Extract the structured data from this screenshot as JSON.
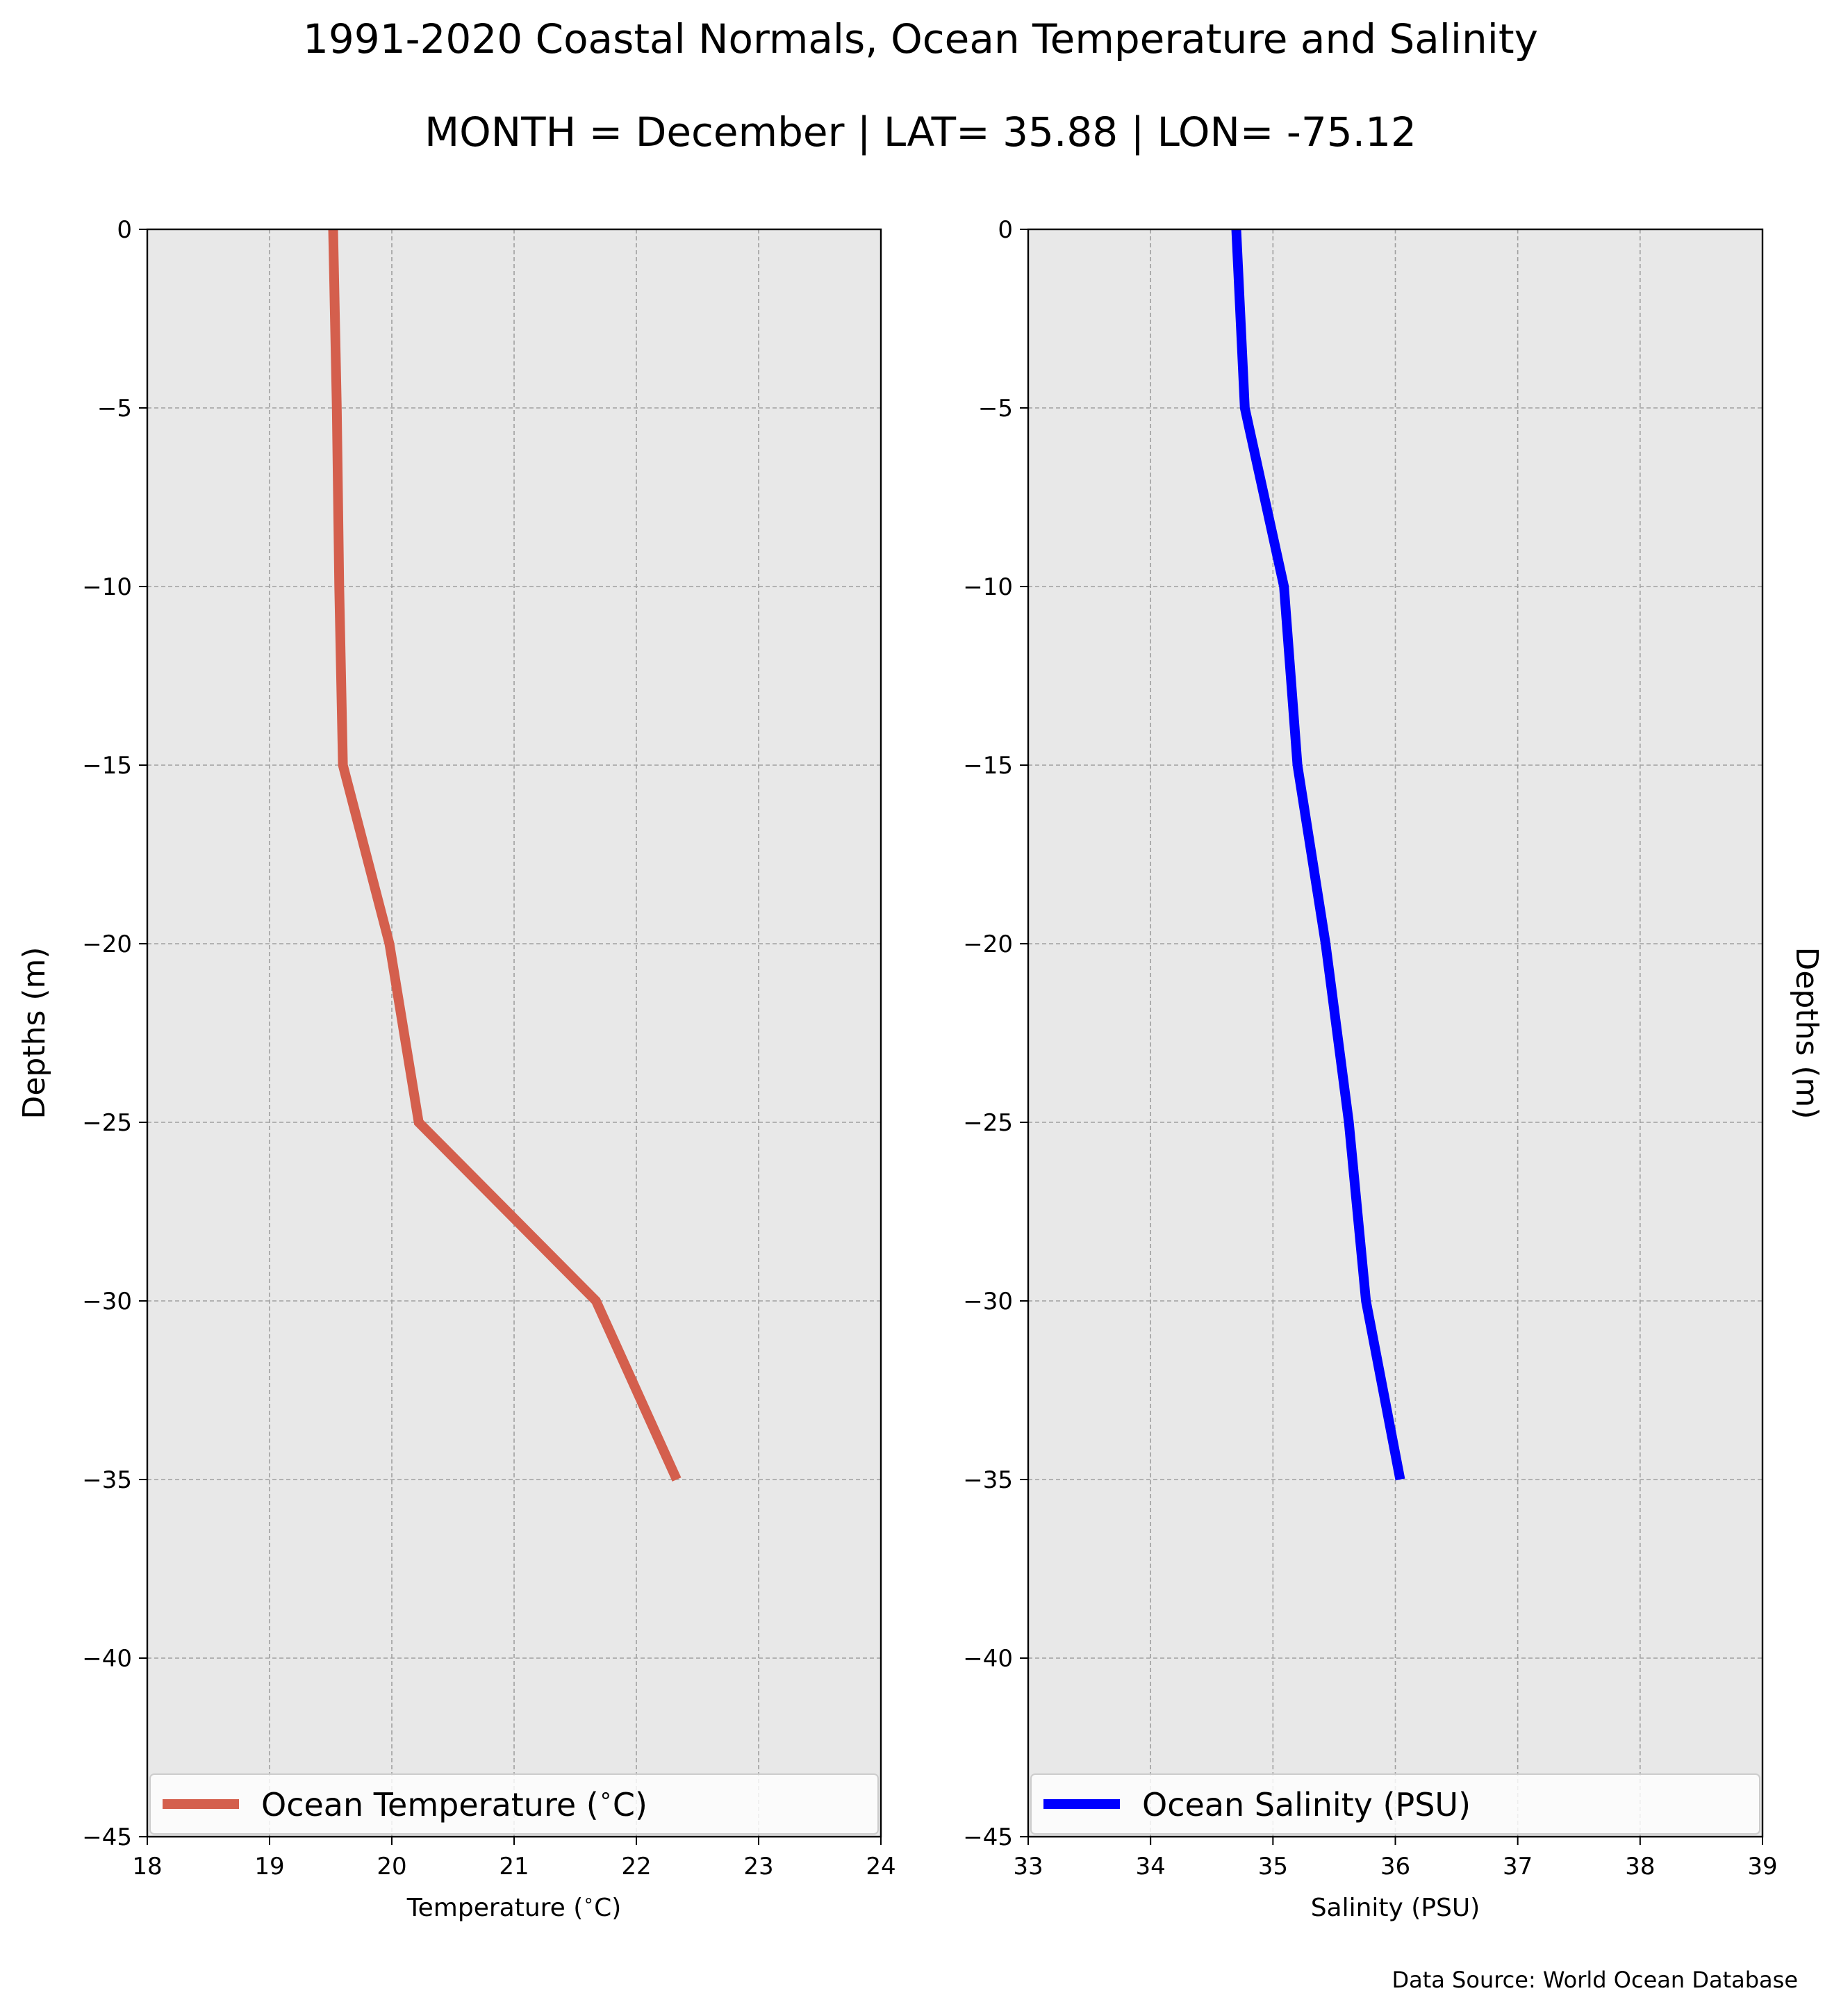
{
  "title": "1991-2020 Coastal Normals, Ocean Temperature and Salinity",
  "subtitle": "MONTH = December | LAT= 35.88 | LON= -75.12",
  "source_note": "Data Source: World Ocean Database",
  "colors": {
    "panel_background": "#e8e8e8",
    "temperature_line": "#d45f4d",
    "salinity_line": "#0000ff",
    "grid": "#a0a0a0"
  },
  "chart_data": [
    {
      "type": "line",
      "xlabel": "Temperature ($^\\circ$C)",
      "ylabel": "Depths (m)",
      "xlim": [
        18,
        24
      ],
      "ylim": [
        -45,
        0
      ],
      "xticks": [
        "18",
        "19",
        "20",
        "21",
        "22",
        "23",
        "24"
      ],
      "yticks": [
        "0",
        "−5",
        "−10",
        "−15",
        "−20",
        "−25",
        "−30",
        "−35",
        "−40",
        "−45"
      ],
      "grid": true,
      "legend_position": "bottom",
      "series": [
        {
          "name": "Ocean Temperature ($^\\circ$C)",
          "x": [
            19.52,
            19.55,
            19.57,
            19.6,
            19.98,
            20.22,
            21.67,
            22.33
          ],
          "y": [
            0,
            -5,
            -10,
            -15,
            -20,
            -25,
            -30,
            -35
          ]
        }
      ]
    },
    {
      "type": "line",
      "xlabel": "Salinity (PSU)",
      "ylabel": "Depths (m)",
      "xlim": [
        33,
        39
      ],
      "ylim": [
        -45,
        0
      ],
      "xticks": [
        "33",
        "34",
        "35",
        "36",
        "37",
        "38",
        "39"
      ],
      "yticks": [
        "0",
        "−5",
        "−10",
        "−15",
        "−20",
        "−25",
        "−30",
        "−35",
        "−40",
        "−45"
      ],
      "grid": true,
      "legend_position": "bottom",
      "series": [
        {
          "name": "Ocean Salinity (PSU)",
          "x": [
            34.7,
            34.77,
            35.09,
            35.2,
            35.43,
            35.62,
            35.76,
            36.04
          ],
          "y": [
            0,
            -5,
            -10,
            -15,
            -20,
            -25,
            -30,
            -35
          ]
        }
      ]
    }
  ]
}
